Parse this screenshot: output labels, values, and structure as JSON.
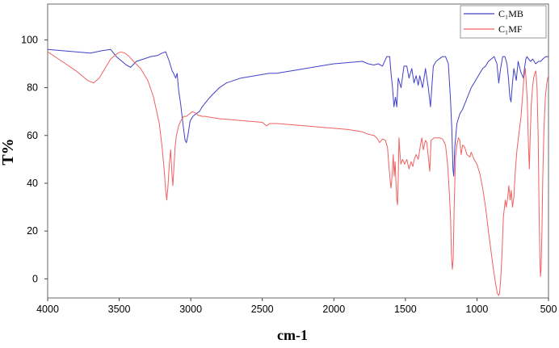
{
  "chart_data": {
    "type": "line",
    "title": "",
    "xlabel": "cm-1",
    "ylabel": "T%",
    "xlim": [
      4000,
      500
    ],
    "ylim": [
      -8,
      115
    ],
    "x_reversed": true,
    "grid": false,
    "legend_position": "top-right",
    "x_ticks": [
      4000,
      3500,
      3000,
      2500,
      2000,
      1500,
      1000,
      500
    ],
    "x_tick_labels": [
      "4000",
      "3500",
      "3000",
      "2500",
      "2000",
      "1500",
      "1000",
      "500"
    ],
    "y_ticks": [
      0,
      20,
      40,
      60,
      80,
      100
    ],
    "y_tick_labels": [
      "0",
      "20",
      "40",
      "60",
      "80",
      "100"
    ],
    "series": [
      {
        "name": "C₁MB",
        "color": "#4040c8",
        "points": [
          [
            4000,
            96
          ],
          [
            3900,
            95.5
          ],
          [
            3800,
            95
          ],
          [
            3700,
            94.5
          ],
          [
            3620,
            95.5
          ],
          [
            3560,
            96
          ],
          [
            3520,
            93
          ],
          [
            3480,
            91
          ],
          [
            3450,
            89.5
          ],
          [
            3420,
            88.5
          ],
          [
            3380,
            91
          ],
          [
            3330,
            92
          ],
          [
            3280,
            93
          ],
          [
            3230,
            93.5
          ],
          [
            3200,
            94.5
          ],
          [
            3175,
            95
          ],
          [
            3150,
            91
          ],
          [
            3130,
            87
          ],
          [
            3120,
            86
          ],
          [
            3105,
            84
          ],
          [
            3095,
            86
          ],
          [
            3085,
            79
          ],
          [
            3070,
            73
          ],
          [
            3055,
            65
          ],
          [
            3040,
            58
          ],
          [
            3030,
            57
          ],
          [
            3020,
            60
          ],
          [
            3005,
            66
          ],
          [
            2985,
            68
          ],
          [
            2965,
            69
          ],
          [
            2940,
            70
          ],
          [
            2920,
            72
          ],
          [
            2880,
            75
          ],
          [
            2850,
            77
          ],
          [
            2800,
            80
          ],
          [
            2750,
            82
          ],
          [
            2700,
            83
          ],
          [
            2650,
            84
          ],
          [
            2600,
            84.5
          ],
          [
            2550,
            85
          ],
          [
            2500,
            85.5
          ],
          [
            2450,
            86
          ],
          [
            2400,
            86
          ],
          [
            2300,
            87
          ],
          [
            2200,
            88
          ],
          [
            2100,
            89
          ],
          [
            2000,
            90
          ],
          [
            1900,
            90.5
          ],
          [
            1800,
            91
          ],
          [
            1760,
            90
          ],
          [
            1720,
            89.5
          ],
          [
            1690,
            90
          ],
          [
            1660,
            89
          ],
          [
            1630,
            93
          ],
          [
            1610,
            93
          ],
          [
            1600,
            86
          ],
          [
            1590,
            80
          ],
          [
            1580,
            72
          ],
          [
            1570,
            76
          ],
          [
            1560,
            72
          ],
          [
            1550,
            84
          ],
          [
            1530,
            80
          ],
          [
            1510,
            89
          ],
          [
            1490,
            89
          ],
          [
            1475,
            84
          ],
          [
            1455,
            88
          ],
          [
            1440,
            82
          ],
          [
            1425,
            85
          ],
          [
            1410,
            81
          ],
          [
            1400,
            85
          ],
          [
            1380,
            80
          ],
          [
            1360,
            88
          ],
          [
            1340,
            80
          ],
          [
            1325,
            72
          ],
          [
            1305,
            89
          ],
          [
            1285,
            91
          ],
          [
            1265,
            92
          ],
          [
            1240,
            93
          ],
          [
            1220,
            93
          ],
          [
            1200,
            90
          ],
          [
            1185,
            75
          ],
          [
            1175,
            62
          ],
          [
            1168,
            46
          ],
          [
            1162,
            43
          ],
          [
            1155,
            55
          ],
          [
            1140,
            65
          ],
          [
            1120,
            69
          ],
          [
            1100,
            71
          ],
          [
            1080,
            74
          ],
          [
            1060,
            77
          ],
          [
            1040,
            80
          ],
          [
            1020,
            82
          ],
          [
            1000,
            84
          ],
          [
            980,
            86
          ],
          [
            960,
            88
          ],
          [
            940,
            89
          ],
          [
            920,
            91
          ],
          [
            900,
            92
          ],
          [
            880,
            93
          ],
          [
            860,
            90
          ],
          [
            848,
            82
          ],
          [
            835,
            88
          ],
          [
            820,
            93
          ],
          [
            805,
            93
          ],
          [
            790,
            90
          ],
          [
            780,
            84
          ],
          [
            770,
            76
          ],
          [
            762,
            74
          ],
          [
            752,
            82
          ],
          [
            742,
            88
          ],
          [
            725,
            83
          ],
          [
            712,
            91
          ],
          [
            700,
            88
          ],
          [
            690,
            86
          ],
          [
            675,
            84
          ],
          [
            668,
            88
          ],
          [
            658,
            92
          ],
          [
            650,
            93
          ],
          [
            640,
            92
          ],
          [
            625,
            91
          ],
          [
            610,
            92
          ],
          [
            590,
            90
          ],
          [
            570,
            91
          ],
          [
            555,
            91
          ],
          [
            540,
            92
          ],
          [
            520,
            93
          ],
          [
            500,
            93
          ]
        ]
      },
      {
        "name": "C₁MF",
        "color": "#f06060",
        "points": [
          [
            4000,
            95
          ],
          [
            3900,
            91
          ],
          [
            3800,
            87
          ],
          [
            3720,
            83
          ],
          [
            3680,
            82
          ],
          [
            3640,
            84
          ],
          [
            3600,
            88
          ],
          [
            3560,
            92
          ],
          [
            3520,
            94
          ],
          [
            3490,
            95
          ],
          [
            3460,
            94.5
          ],
          [
            3430,
            93
          ],
          [
            3400,
            91
          ],
          [
            3350,
            88
          ],
          [
            3300,
            83
          ],
          [
            3260,
            76
          ],
          [
            3220,
            65
          ],
          [
            3200,
            55
          ],
          [
            3185,
            45
          ],
          [
            3175,
            37
          ],
          [
            3168,
            33
          ],
          [
            3160,
            38
          ],
          [
            3150,
            48
          ],
          [
            3140,
            54
          ],
          [
            3132,
            44
          ],
          [
            3125,
            39
          ],
          [
            3118,
            46
          ],
          [
            3110,
            55
          ],
          [
            3100,
            60
          ],
          [
            3085,
            64
          ],
          [
            3070,
            66
          ],
          [
            3050,
            68
          ],
          [
            3030,
            68
          ],
          [
            3010,
            69
          ],
          [
            2990,
            70
          ],
          [
            2970,
            69.5
          ],
          [
            2950,
            68.5
          ],
          [
            2920,
            68
          ],
          [
            2900,
            68
          ],
          [
            2850,
            67.5
          ],
          [
            2800,
            67
          ],
          [
            2700,
            66.5
          ],
          [
            2600,
            66
          ],
          [
            2500,
            65.5
          ],
          [
            2470,
            64
          ],
          [
            2450,
            65
          ],
          [
            2400,
            65
          ],
          [
            2300,
            64.5
          ],
          [
            2200,
            64
          ],
          [
            2100,
            63.5
          ],
          [
            2000,
            63
          ],
          [
            1900,
            62.5
          ],
          [
            1800,
            61.5
          ],
          [
            1760,
            60.5
          ],
          [
            1720,
            60
          ],
          [
            1700,
            59
          ],
          [
            1680,
            57
          ],
          [
            1660,
            58.5
          ],
          [
            1640,
            58
          ],
          [
            1625,
            55
          ],
          [
            1615,
            47
          ],
          [
            1605,
            40
          ],
          [
            1600,
            38
          ],
          [
            1592,
            44
          ],
          [
            1585,
            52
          ],
          [
            1578,
            43
          ],
          [
            1572,
            49
          ],
          [
            1566,
            40
          ],
          [
            1560,
            33
          ],
          [
            1555,
            31
          ],
          [
            1550,
            42
          ],
          [
            1545,
            59
          ],
          [
            1540,
            54
          ],
          [
            1532,
            48
          ],
          [
            1520,
            50
          ],
          [
            1505,
            48
          ],
          [
            1490,
            50
          ],
          [
            1475,
            46
          ],
          [
            1460,
            49
          ],
          [
            1448,
            47
          ],
          [
            1438,
            50
          ],
          [
            1425,
            52
          ],
          [
            1410,
            50
          ],
          [
            1395,
            56
          ],
          [
            1385,
            59
          ],
          [
            1375,
            54
          ],
          [
            1360,
            58
          ],
          [
            1350,
            57
          ],
          [
            1340,
            51
          ],
          [
            1330,
            45
          ],
          [
            1320,
            58
          ],
          [
            1300,
            59
          ],
          [
            1280,
            59
          ],
          [
            1260,
            59
          ],
          [
            1240,
            58.5
          ],
          [
            1220,
            56
          ],
          [
            1205,
            48
          ],
          [
            1195,
            38
          ],
          [
            1185,
            26
          ],
          [
            1178,
            10
          ],
          [
            1172,
            4
          ],
          [
            1166,
            8
          ],
          [
            1160,
            28
          ],
          [
            1150,
            51
          ],
          [
            1140,
            56
          ],
          [
            1130,
            59
          ],
          [
            1120,
            58
          ],
          [
            1110,
            52
          ],
          [
            1100,
            56
          ],
          [
            1085,
            55
          ],
          [
            1070,
            52
          ],
          [
            1050,
            51
          ],
          [
            1040,
            53
          ],
          [
            1020,
            50
          ],
          [
            1000,
            48
          ],
          [
            980,
            44
          ],
          [
            960,
            38
          ],
          [
            940,
            30
          ],
          [
            920,
            20
          ],
          [
            900,
            11
          ],
          [
            885,
            4
          ],
          [
            870,
            -2
          ],
          [
            858,
            -6
          ],
          [
            848,
            -7
          ],
          [
            842,
            -6
          ],
          [
            835,
            -1
          ],
          [
            825,
            10
          ],
          [
            815,
            26
          ],
          [
            802,
            33
          ],
          [
            795,
            30
          ],
          [
            785,
            34
          ],
          [
            777,
            39
          ],
          [
            768,
            33
          ],
          [
            760,
            37
          ],
          [
            752,
            30
          ],
          [
            742,
            34
          ],
          [
            732,
            45
          ],
          [
            722,
            53
          ],
          [
            712,
            58
          ],
          [
            702,
            63
          ],
          [
            692,
            68
          ],
          [
            682,
            76
          ],
          [
            672,
            84
          ],
          [
            662,
            88
          ],
          [
            655,
            82
          ],
          [
            648,
            74
          ],
          [
            640,
            56
          ],
          [
            634,
            46
          ],
          [
            628,
            59
          ],
          [
            620,
            73
          ],
          [
            612,
            80
          ],
          [
            604,
            84
          ],
          [
            596,
            86
          ],
          [
            588,
            87
          ],
          [
            580,
            80
          ],
          [
            572,
            60
          ],
          [
            566,
            30
          ],
          [
            560,
            8
          ],
          [
            556,
            1
          ],
          [
            552,
            4
          ],
          [
            546,
            20
          ],
          [
            540,
            42
          ],
          [
            532,
            62
          ],
          [
            522,
            76
          ],
          [
            512,
            82
          ],
          [
            505,
            84
          ],
          [
            500,
            85
          ]
        ]
      }
    ]
  }
}
